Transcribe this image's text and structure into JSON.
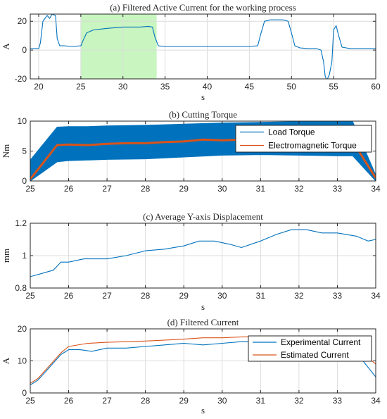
{
  "colors": {
    "blue": "#0072BD",
    "orange": "#D95319",
    "highlight": "#c8f5c0",
    "grid": "#dcdcdc",
    "axis": "#262626"
  },
  "chart_data": [
    {
      "type": "line",
      "title": "(a) Filtered Active Current for the working process",
      "xlabel": "s",
      "ylabel": "A",
      "xlim": [
        19,
        60
      ],
      "ylim": [
        -20,
        25
      ],
      "xticks": [
        20,
        25,
        30,
        35,
        40,
        45,
        50,
        55,
        60
      ],
      "yticks": [
        -20,
        0,
        20
      ],
      "grid": true,
      "highlight_region": [
        25,
        34
      ],
      "series": [
        {
          "color": "#0072BD",
          "x": [
            19,
            20,
            20.2,
            20.5,
            21,
            21.3,
            21.6,
            22,
            22.2,
            22.5,
            23,
            24,
            25,
            25.3,
            25.7,
            26.5,
            28,
            30,
            32,
            33,
            33.5,
            33.8,
            34.2,
            35,
            40,
            45,
            46,
            46.3,
            46.8,
            47.5,
            49,
            49.6,
            50,
            50.4,
            51,
            52,
            53,
            53.5,
            53.8,
            54,
            54.2,
            54.5,
            54.8,
            55,
            55.3,
            55.6,
            56,
            57,
            60
          ],
          "y": [
            1,
            1,
            5,
            20,
            24,
            22,
            25,
            24,
            8,
            3,
            3,
            2.5,
            3,
            7,
            12,
            14,
            15,
            16,
            16,
            16.5,
            16,
            9,
            3,
            2.5,
            2.5,
            2.5,
            3,
            10,
            20,
            21,
            21,
            20,
            12,
            3,
            1.5,
            1,
            1,
            0,
            -8,
            -18,
            -21,
            -17,
            -8,
            14,
            17,
            10,
            2,
            1,
            1
          ]
        }
      ]
    },
    {
      "type": "line",
      "title": "(b) Cutting Torque",
      "xlabel": "",
      "ylabel": "Nm",
      "xlim": [
        25,
        34
      ],
      "ylim": [
        0,
        10
      ],
      "xticks": [
        25,
        26,
        27,
        28,
        29,
        30,
        31,
        32,
        33,
        34
      ],
      "yticks": [
        0,
        5,
        10
      ],
      "grid": true,
      "legend": "top-right",
      "band": {
        "name": "Load Torque",
        "color": "#0072BD",
        "x": [
          25,
          25.7,
          26,
          26.5,
          27,
          28,
          29,
          30,
          31,
          32,
          33,
          33.4,
          34
        ],
        "upper": [
          3.5,
          9.0,
          9.1,
          9.1,
          9.2,
          9.3,
          9.5,
          9.7,
          9.8,
          9.9,
          9.9,
          9.9,
          1
        ],
        "lower": [
          0,
          3.2,
          3.4,
          3.5,
          3.6,
          3.7,
          4.0,
          4.3,
          4.4,
          4.3,
          4.2,
          4.2,
          0
        ]
      },
      "series": [
        {
          "name": "Electromagnetic Torque",
          "color": "#D95319",
          "x": [
            25,
            25.7,
            26,
            26.5,
            27,
            27.5,
            28,
            28.5,
            29,
            29.5,
            30,
            30.5,
            31,
            32,
            33,
            33.4,
            34
          ],
          "y": [
            0.3,
            6.0,
            6.1,
            6.0,
            6.2,
            6.3,
            6.3,
            6.5,
            6.6,
            6.9,
            6.8,
            6.9,
            6.8,
            6.8,
            6.7,
            6.6,
            0.5
          ]
        }
      ]
    },
    {
      "type": "line",
      "title": "(c) Average Y-axis Displacement",
      "xlabel": "s",
      "ylabel": "mm",
      "xlim": [
        25,
        34
      ],
      "ylim": [
        0.8,
        1.2
      ],
      "xticks": [
        25,
        26,
        27,
        28,
        29,
        30,
        31,
        32,
        33,
        34
      ],
      "yticks": [
        0.8,
        1,
        1.2
      ],
      "grid": true,
      "series": [
        {
          "color": "#0072BD",
          "x": [
            25,
            25.3,
            25.6,
            25.8,
            26,
            26.4,
            26.8,
            27,
            27.5,
            28,
            28.5,
            29,
            29.4,
            29.8,
            30.2,
            30.5,
            31,
            31.4,
            31.8,
            32.2,
            32.6,
            33,
            33.5,
            33.8,
            34
          ],
          "y": [
            0.87,
            0.89,
            0.91,
            0.96,
            0.96,
            0.98,
            0.98,
            0.98,
            1.0,
            1.03,
            1.04,
            1.06,
            1.09,
            1.09,
            1.07,
            1.05,
            1.09,
            1.13,
            1.16,
            1.16,
            1.14,
            1.14,
            1.12,
            1.09,
            1.1
          ]
        }
      ]
    },
    {
      "type": "line",
      "title": "(d) Filtered Current",
      "xlabel": "s",
      "ylabel": "A",
      "xlim": [
        25,
        34
      ],
      "ylim": [
        0,
        20
      ],
      "xticks": [
        25,
        26,
        27,
        28,
        29,
        30,
        31,
        32,
        33,
        34
      ],
      "yticks": [
        0,
        10,
        20
      ],
      "grid": true,
      "legend": "top-right",
      "series": [
        {
          "name": "Experimental Current",
          "color": "#0072BD",
          "x": [
            25,
            25.2,
            25.5,
            25.8,
            26,
            26.3,
            26.6,
            27,
            27.5,
            28,
            28.5,
            29,
            29.5,
            30,
            30.5,
            31,
            32,
            33,
            33.3,
            33.6,
            34
          ],
          "y": [
            2.5,
            4,
            8,
            12,
            13.5,
            13.5,
            13,
            14,
            14,
            14.5,
            15,
            15.5,
            15,
            15.5,
            16,
            16,
            16,
            15.5,
            15,
            11,
            5
          ]
        },
        {
          "name": "Estimated Current",
          "color": "#D95319",
          "x": [
            25,
            25.2,
            25.5,
            25.8,
            26,
            26.5,
            27,
            28,
            29,
            29.5,
            30,
            30.5,
            31,
            32,
            33,
            33.3,
            33.6,
            34
          ],
          "y": [
            3,
            4.5,
            8.5,
            12.5,
            14.5,
            15.5,
            15.8,
            16.2,
            16.8,
            17.2,
            17.2,
            17.5,
            17.6,
            17.5,
            17.3,
            17,
            13,
            9
          ]
        }
      ]
    }
  ]
}
